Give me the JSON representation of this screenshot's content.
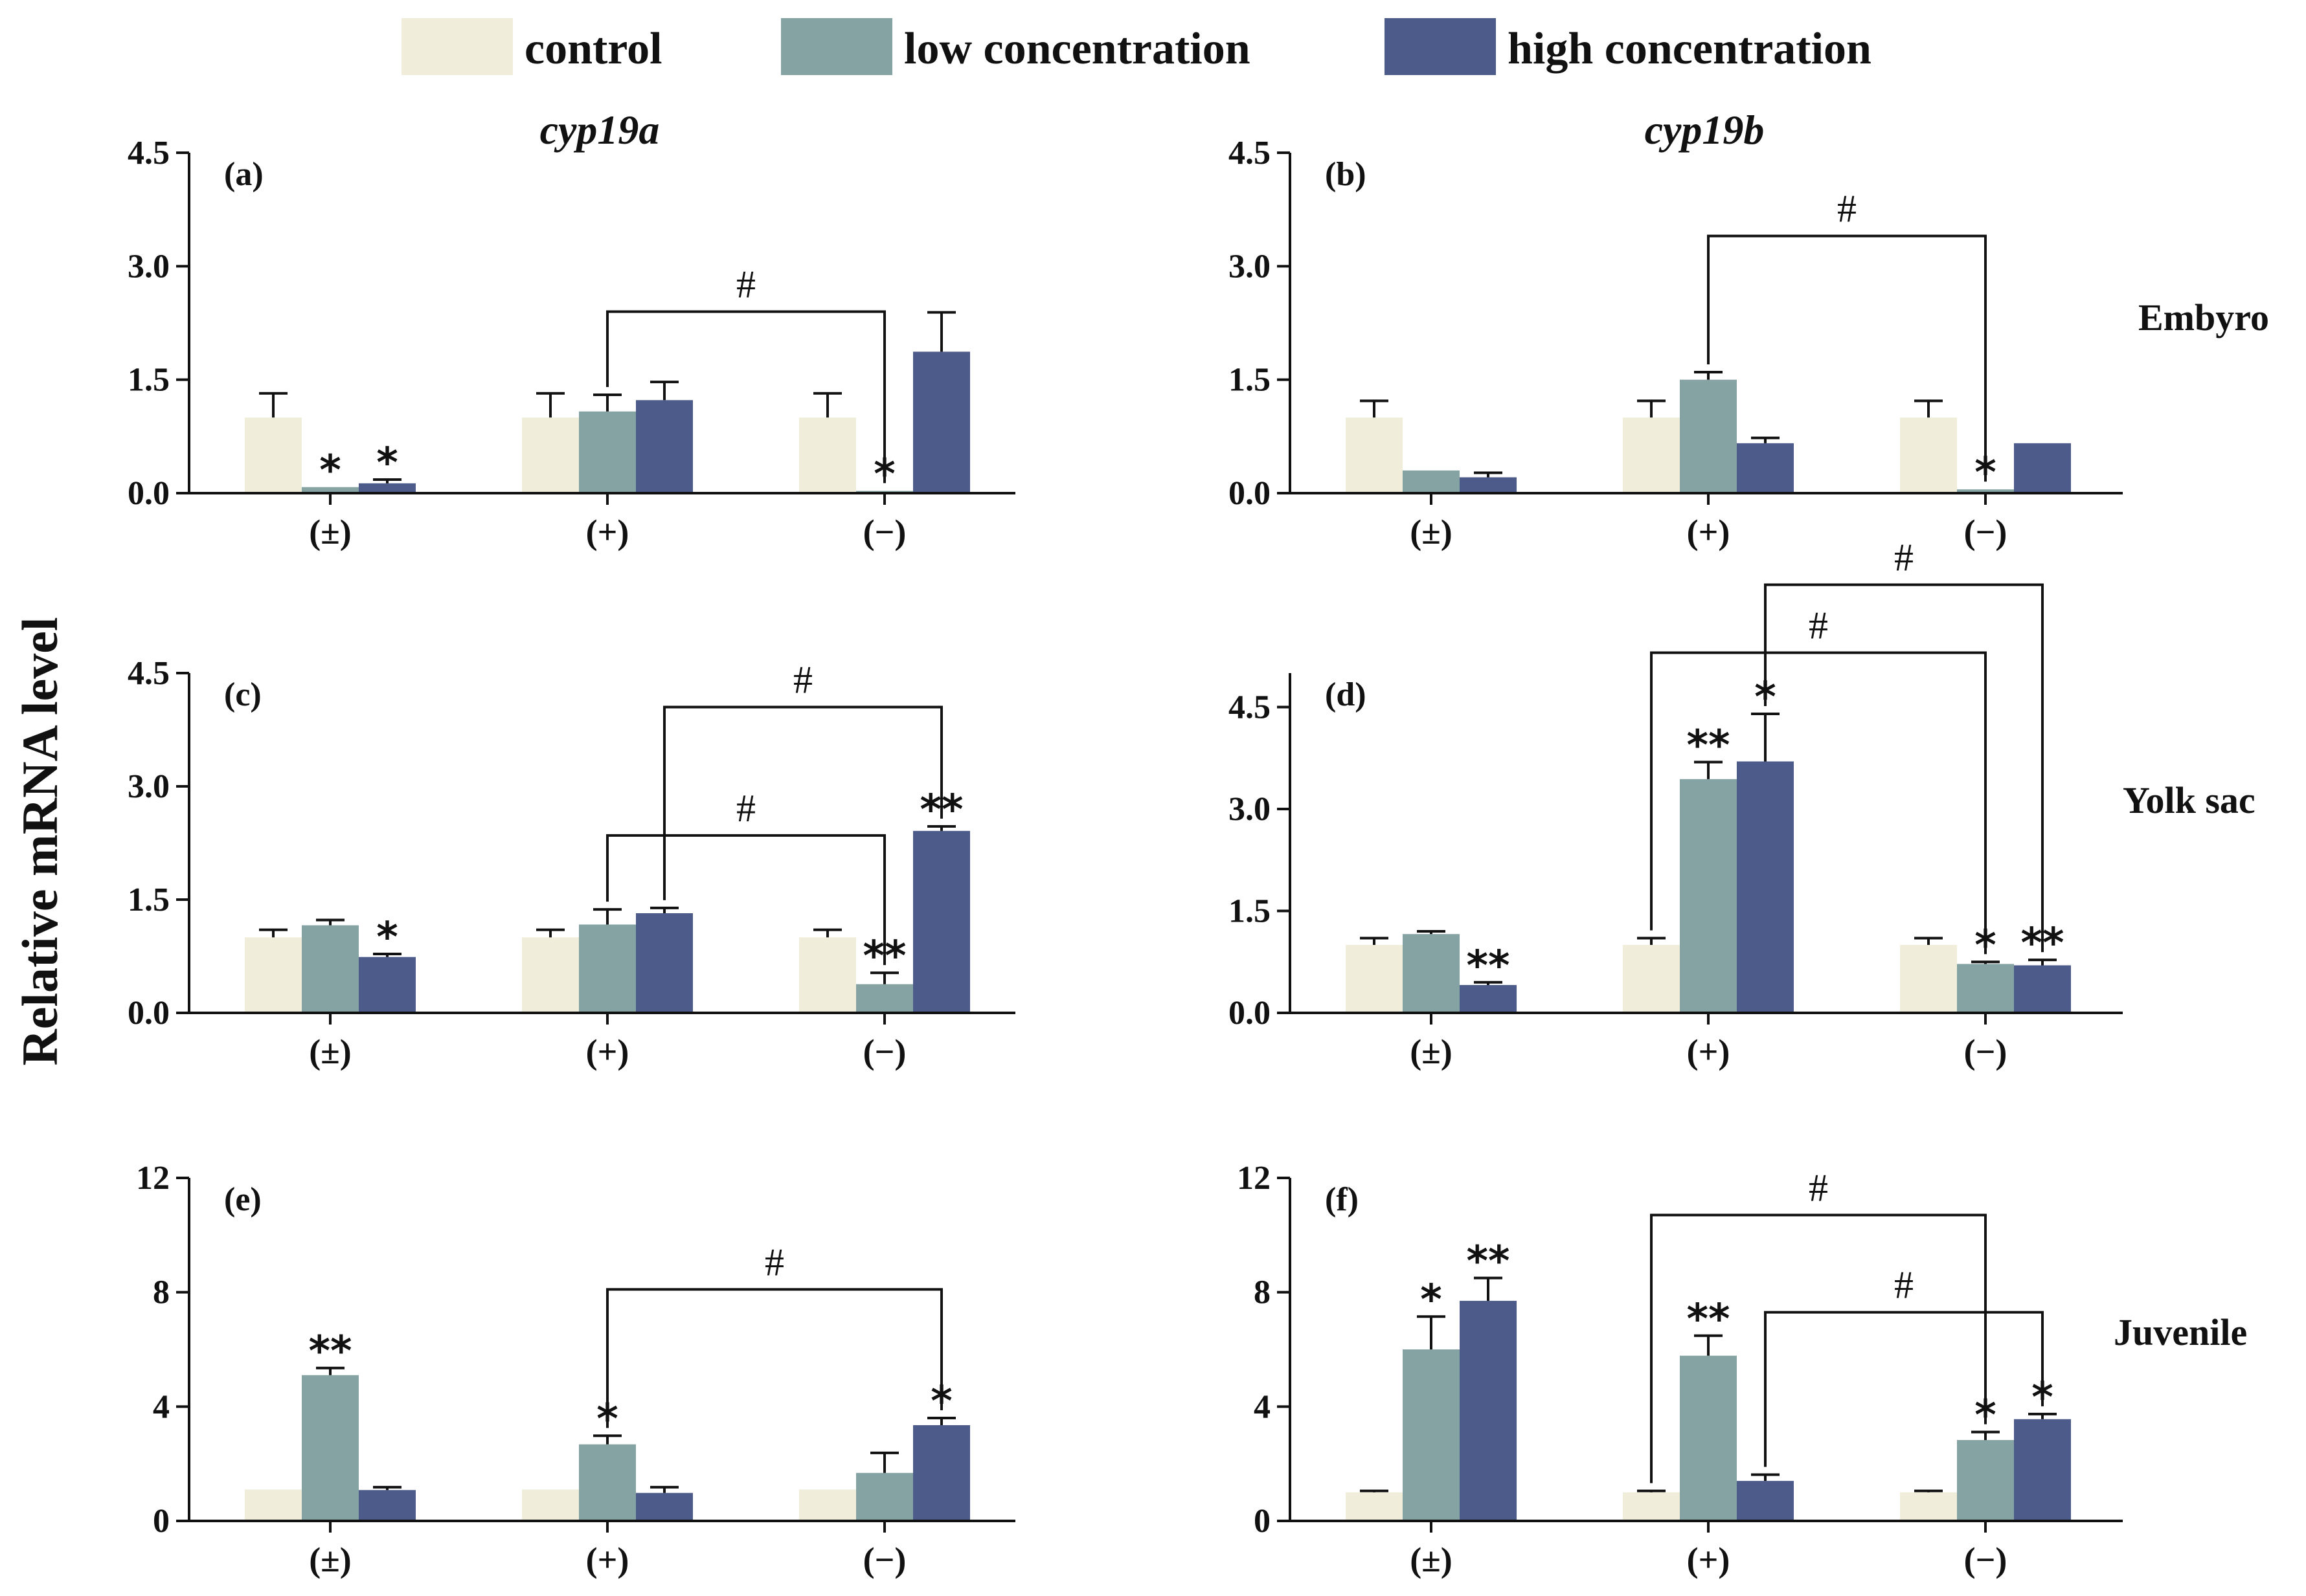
{
  "colors": {
    "control": "#f0eedb",
    "low": "#86a3a3",
    "high": "#4d5b8b",
    "ink": "#111111"
  },
  "legend": [
    {
      "key": "control",
      "label": "control"
    },
    {
      "key": "low",
      "label": "low concentration"
    },
    {
      "key": "high",
      "label": "high concentration"
    }
  ],
  "y_axis_label": "Relative mRNA level",
  "titles": {
    "left": "cyp19a",
    "right": "cyp19b"
  },
  "row_labels": [
    "Embyro",
    "Yolk sac",
    "Juvenile"
  ],
  "chart_data": [
    {
      "panel": "(a)",
      "type": "bar",
      "gene": "cyp19a",
      "stage": "Embyro",
      "categories": [
        "(±)",
        "(+)",
        "(−)"
      ],
      "ylim": [
        0,
        4.5
      ],
      "ticks": [
        "0.0",
        "1.5",
        "3.0",
        "4.5"
      ],
      "tick_values": [
        0,
        1.5,
        3.0,
        4.5
      ],
      "series": [
        {
          "name": "control",
          "values": [
            1.0,
            1.0,
            1.0
          ],
          "errors": [
            0.32,
            0.32,
            0.32
          ]
        },
        {
          "name": "low concentration",
          "values": [
            0.08,
            1.08,
            0.03
          ],
          "errors": [
            0.0,
            0.22,
            0.0
          ]
        },
        {
          "name": "high concentration",
          "values": [
            0.13,
            1.23,
            1.87
          ],
          "errors": [
            0.05,
            0.24,
            0.52
          ]
        }
      ],
      "stars": [
        {
          "cat": 0,
          "series": 1,
          "text": "*"
        },
        {
          "cat": 0,
          "series": 2,
          "text": "*"
        },
        {
          "cat": 2,
          "series": 1,
          "text": "*"
        }
      ],
      "brackets": [
        {
          "from_cat": 1,
          "from_series": 1,
          "to_cat": 2,
          "to_series": 1,
          "level": 2.4,
          "label": "#"
        }
      ]
    },
    {
      "panel": "(b)",
      "type": "bar",
      "gene": "cyp19b",
      "stage": "Embyro",
      "categories": [
        "(±)",
        "(+)",
        "(−)"
      ],
      "ylim": [
        0,
        4.5
      ],
      "ticks": [
        "0.0",
        "1.5",
        "3.0",
        "4.5"
      ],
      "tick_values": [
        0,
        1.5,
        3.0,
        4.5
      ],
      "series": [
        {
          "name": "control",
          "values": [
            1.0,
            1.0,
            1.0
          ],
          "errors": [
            0.22,
            0.22,
            0.22
          ]
        },
        {
          "name": "low concentration",
          "values": [
            0.3,
            1.5,
            0.05
          ],
          "errors": [
            0.0,
            0.1,
            0.0
          ]
        },
        {
          "name": "high concentration",
          "values": [
            0.21,
            0.66,
            0.66
          ],
          "errors": [
            0.06,
            0.07,
            0.0
          ]
        }
      ],
      "stars": [
        {
          "cat": 2,
          "series": 1,
          "text": "*"
        }
      ],
      "brackets": [
        {
          "from_cat": 1,
          "from_series": 1,
          "to_cat": 2,
          "to_series": 1,
          "level": 3.4,
          "label": "#"
        }
      ]
    },
    {
      "panel": "(c)",
      "type": "bar",
      "gene": "cyp19a",
      "stage": "Yolk sac",
      "categories": [
        "(±)",
        "(+)",
        "(−)"
      ],
      "ylim": [
        0,
        4.5
      ],
      "ticks": [
        "0.0",
        "1.5",
        "3.0",
        "4.5"
      ],
      "tick_values": [
        0,
        1.5,
        3.0,
        4.5
      ],
      "series": [
        {
          "name": "control",
          "values": [
            1.0,
            1.0,
            1.0
          ],
          "errors": [
            0.1,
            0.1,
            0.1
          ]
        },
        {
          "name": "low concentration",
          "values": [
            1.16,
            1.17,
            0.38
          ],
          "errors": [
            0.07,
            0.2,
            0.15
          ]
        },
        {
          "name": "high concentration",
          "values": [
            0.74,
            1.32,
            2.41
          ],
          "errors": [
            0.04,
            0.07,
            0.06
          ]
        }
      ],
      "stars": [
        {
          "cat": 0,
          "series": 2,
          "text": "*"
        },
        {
          "cat": 2,
          "series": 1,
          "text": "**"
        },
        {
          "cat": 2,
          "series": 2,
          "text": "**"
        }
      ],
      "brackets": [
        {
          "from_cat": 1,
          "from_series": 1,
          "to_cat": 2,
          "to_series": 1,
          "level": 2.35,
          "label": "#"
        },
        {
          "from_cat": 1,
          "from_series": 2,
          "to_cat": 2,
          "to_series": 2,
          "level": 4.05,
          "label": "#"
        }
      ]
    },
    {
      "panel": "(d)",
      "type": "bar",
      "gene": "cyp19b",
      "stage": "Yolk sac",
      "categories": [
        "(±)",
        "(+)",
        "(−)"
      ],
      "ylim": [
        0,
        5.0
      ],
      "ticks": [
        "0.0",
        "1.5",
        "3.0",
        "4.5"
      ],
      "tick_values": [
        0,
        1.5,
        3.0,
        4.5
      ],
      "series": [
        {
          "name": "control",
          "values": [
            1.0,
            1.0,
            1.0
          ],
          "errors": [
            0.1,
            0.1,
            0.1
          ]
        },
        {
          "name": "low concentration",
          "values": [
            1.16,
            3.44,
            0.72
          ],
          "errors": [
            0.04,
            0.25,
            0.03
          ]
        },
        {
          "name": "high concentration",
          "values": [
            0.41,
            3.7,
            0.7
          ],
          "errors": [
            0.04,
            0.7,
            0.08
          ]
        }
      ],
      "stars": [
        {
          "cat": 0,
          "series": 2,
          "text": "**"
        },
        {
          "cat": 1,
          "series": 1,
          "text": "**"
        },
        {
          "cat": 1,
          "series": 2,
          "text": "*"
        },
        {
          "cat": 2,
          "series": 1,
          "text": "*"
        },
        {
          "cat": 2,
          "series": 2,
          "text": "**"
        }
      ],
      "brackets": [
        {
          "from_cat": 1,
          "from_series": 0,
          "to_cat": 2,
          "to_series": 1,
          "level": 5.3,
          "label": "#"
        },
        {
          "from_cat": 1,
          "from_series": 2,
          "to_cat": 2,
          "to_series": 2,
          "level": 6.3,
          "label": "#"
        }
      ]
    },
    {
      "panel": "(e)",
      "type": "bar",
      "gene": "cyp19a",
      "stage": "Juvenile",
      "categories": [
        "(±)",
        "(+)",
        "(−)"
      ],
      "ylim": [
        0,
        12
      ],
      "ticks": [
        "0",
        "4",
        "8",
        "12"
      ],
      "tick_values": [
        0,
        4,
        8,
        12
      ],
      "series": [
        {
          "name": "control",
          "values": [
            1.1,
            1.1,
            1.1
          ],
          "errors": [
            0.0,
            0.0,
            0.0
          ]
        },
        {
          "name": "low concentration",
          "values": [
            5.1,
            2.68,
            1.68
          ],
          "errors": [
            0.25,
            0.3,
            0.7
          ]
        },
        {
          "name": "high concentration",
          "values": [
            1.08,
            0.98,
            3.35
          ],
          "errors": [
            0.1,
            0.2,
            0.25
          ]
        }
      ],
      "stars": [
        {
          "cat": 0,
          "series": 1,
          "text": "**"
        },
        {
          "cat": 1,
          "series": 1,
          "text": "*"
        },
        {
          "cat": 2,
          "series": 2,
          "text": "*"
        }
      ],
      "brackets": [
        {
          "from_cat": 1,
          "from_series": 1,
          "to_cat": 2,
          "to_series": 2,
          "level": 8.1,
          "label": "#"
        }
      ]
    },
    {
      "panel": "(f)",
      "type": "bar",
      "gene": "cyp19b",
      "stage": "Juvenile",
      "categories": [
        "(±)",
        "(+)",
        "(−)"
      ],
      "ylim": [
        0,
        12
      ],
      "ticks": [
        "0",
        "4",
        "8",
        "12"
      ],
      "tick_values": [
        0,
        4,
        8,
        12
      ],
      "series": [
        {
          "name": "control",
          "values": [
            1.0,
            1.0,
            1.0
          ],
          "errors": [
            0.05,
            0.05,
            0.05
          ]
        },
        {
          "name": "low concentration",
          "values": [
            6.0,
            5.78,
            2.83
          ],
          "errors": [
            1.15,
            0.7,
            0.28
          ]
        },
        {
          "name": "high concentration",
          "values": [
            7.7,
            1.4,
            3.56
          ],
          "errors": [
            0.8,
            0.22,
            0.18
          ]
        }
      ],
      "stars": [
        {
          "cat": 0,
          "series": 1,
          "text": "*"
        },
        {
          "cat": 0,
          "series": 2,
          "text": "**"
        },
        {
          "cat": 1,
          "series": 1,
          "text": "**"
        },
        {
          "cat": 2,
          "series": 1,
          "text": "*"
        },
        {
          "cat": 2,
          "series": 2,
          "text": "*"
        }
      ],
      "brackets": [
        {
          "from_cat": 1,
          "from_series": 0,
          "to_cat": 2,
          "to_series": 1,
          "level": 10.7,
          "label": "#"
        },
        {
          "from_cat": 1,
          "from_series": 2,
          "to_cat": 2,
          "to_series": 2,
          "level": 7.3,
          "label": "#"
        }
      ]
    }
  ]
}
